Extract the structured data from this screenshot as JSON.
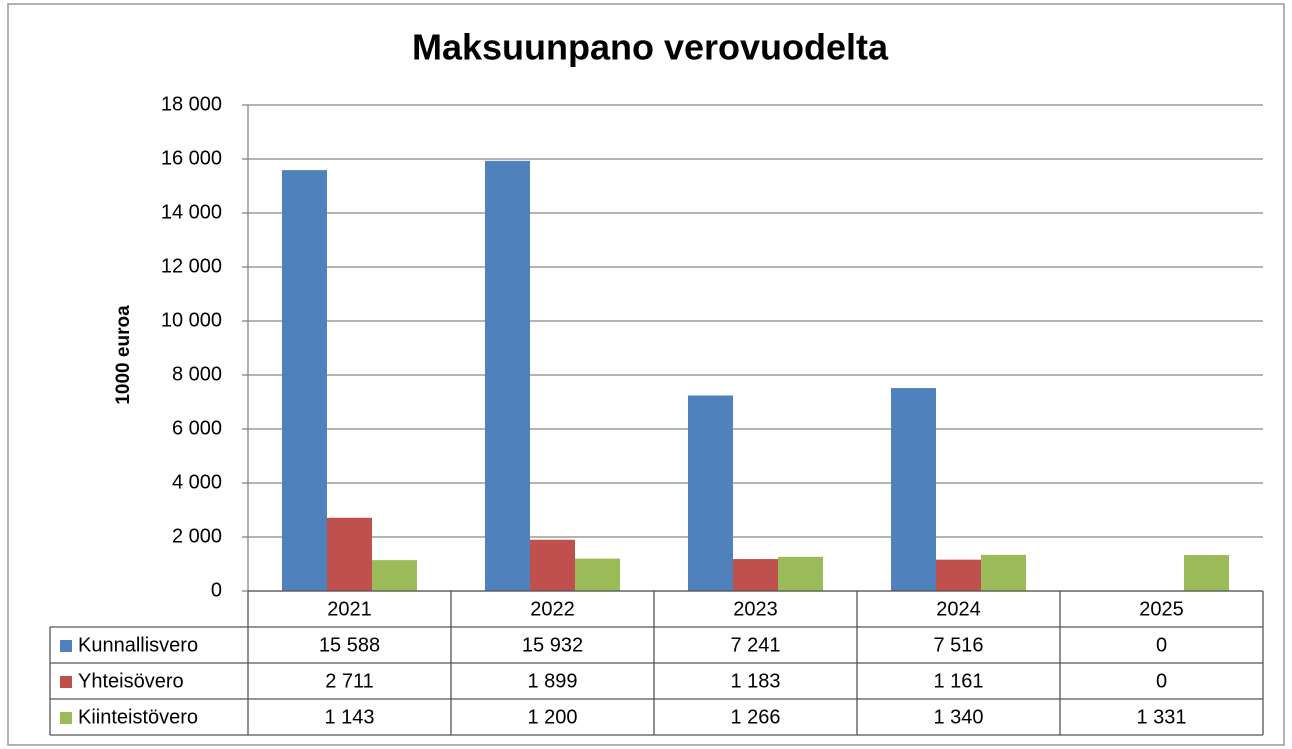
{
  "chart_data": {
    "type": "bar",
    "title": "Maksuunpano verovuodelta",
    "y_axis_label": "1000 euroa",
    "categories": [
      "2021",
      "2022",
      "2023",
      "2024",
      "2025"
    ],
    "series": [
      {
        "name": "Kunnallisvero",
        "color": "#4f81bd",
        "values": [
          15588,
          15932,
          7241,
          7516,
          0
        ],
        "value_labels": [
          "15 588",
          "15 932",
          "7 241",
          "7 516",
          "0"
        ]
      },
      {
        "name": "Yhteisövero",
        "color": "#c0504d",
        "values": [
          2711,
          1899,
          1183,
          1161,
          0
        ],
        "value_labels": [
          "2 711",
          "1 899",
          "1 183",
          "1 161",
          "0"
        ]
      },
      {
        "name": "Kiinteistövero",
        "color": "#9bbb59",
        "values": [
          1143,
          1200,
          1266,
          1340,
          1331
        ],
        "value_labels": [
          "1 143",
          "1 200",
          "1 266",
          "1 340",
          "1 331"
        ]
      }
    ],
    "ylim": [
      0,
      18000
    ],
    "yticks": [
      0,
      {
        "value": 2000,
        "label": "2 000"
      },
      {
        "value": 4000,
        "label": "4 000"
      },
      {
        "value": 6000,
        "label": "6 000"
      },
      {
        "value": 8000,
        "label": "8 000"
      },
      {
        "value": 10000,
        "label": "10 000"
      },
      {
        "value": 12000,
        "label": "12 000"
      },
      {
        "value": 14000,
        "label": "14 000"
      },
      {
        "value": 16000,
        "label": "16 000"
      },
      {
        "value": 18000,
        "label": "18 000"
      }
    ],
    "grid": true
  }
}
